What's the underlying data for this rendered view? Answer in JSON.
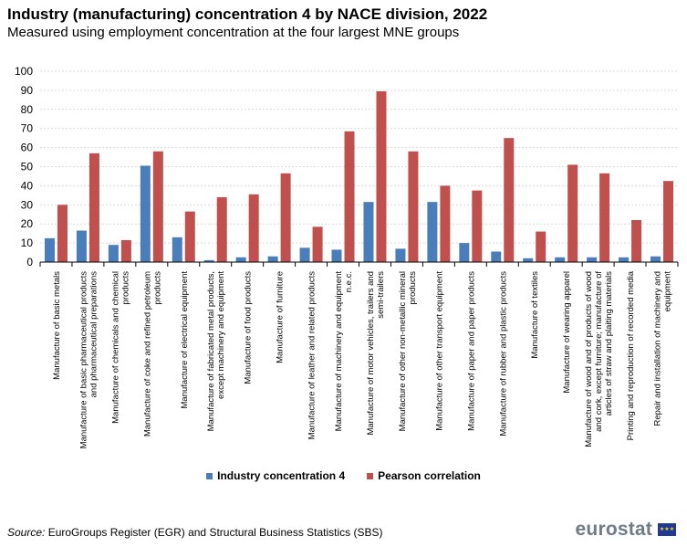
{
  "header": {
    "title": "Industry (manufacturing) concentration 4 by NACE division, 2022",
    "subtitle": "Measured using employment concentration at the four largest MNE groups"
  },
  "footer": {
    "source_label": "Source:",
    "source_text": "EuroGroups Register (EGR) and Structural Business Statistics (SBS)",
    "logo_text": "eurostat"
  },
  "colors": {
    "series1": "#4a7ebb",
    "series2": "#c0504d",
    "grid": "#d9d9d9",
    "axis": "#000000"
  },
  "chart_data": {
    "type": "bar",
    "title": "Industry (manufacturing) concentration 4 by NACE division, 2022",
    "xlabel": "",
    "ylabel": "",
    "ylim": [
      0,
      100
    ],
    "yticks": [
      0,
      10,
      20,
      30,
      40,
      50,
      60,
      70,
      80,
      90,
      100
    ],
    "grid": true,
    "legend_position": "bottom-center",
    "categories": [
      "Manufacture of basic metals",
      "Manufacture of basic pharmaceutical products and pharmaceutical preparations",
      "Manufacture of chemicals and chemical products",
      "Manufacture of coke and refined petroleum products",
      "Manufacture of electrical equipment",
      "Manufacture of fabricated metal products, except machinery and equipment",
      "Manufacture of food products",
      "Manufacture of furniture",
      "Manufacture of leather and related products",
      "Manufacture of machinery and equipment n.e.c.",
      "Manufacture of motor vehicles, trailers and semi-trailers",
      "Manufacture of other non-metallic mineral products",
      "Manufacture of other transport equipment",
      "Manufacture of paper and paper products",
      "Manufacture of rubber and plastic products",
      "Manufacture of textiles",
      "Manufacture of wearing apparel",
      "Manufacture of wood and of products of wood and cork, except furniture; manufacture of articles of straw and plaiting materials",
      "Printing and reproduction of recorded media",
      "Repair and installation of machinery and equipment"
    ],
    "category_lines": [
      [
        "Manufacture of basic metals"
      ],
      [
        "Manufacture of basic pharmaceutical products",
        "and pharmaceutical preparations"
      ],
      [
        "Manufacture of chemicals and chemical",
        "products"
      ],
      [
        "Manufacture of coke and refined petroleum",
        "products"
      ],
      [
        "Manufacture of electrical equipment"
      ],
      [
        "Manufacture of fabricated metal products,",
        "except machinery and equipment"
      ],
      [
        "Manufacture of food products"
      ],
      [
        "Manufacture of furniture"
      ],
      [
        "Manufacture of leather and related products"
      ],
      [
        "Manufacture of machinery and equipment",
        "n.e.c."
      ],
      [
        "Manufacture of motor vehicles, trailers and",
        "semi-trailers"
      ],
      [
        "Manufacture of other non-metallic mineral",
        "products"
      ],
      [
        "Manufacture of other transport equipment"
      ],
      [
        "Manufacture of paper and paper products"
      ],
      [
        "Manufacture of rubber and plastic products"
      ],
      [
        "Manufacture of textiles"
      ],
      [
        "Manufacture of wearing apparel"
      ],
      [
        "Manufacture of wood and of products of wood",
        "and cork, except furniture; manufacture of",
        "articles of straw and plaiting materials"
      ],
      [
        "Printing and reproduction of recorded media"
      ],
      [
        "Repair and installation of machinery and",
        "equipment"
      ]
    ],
    "series": [
      {
        "name": "Industry concentration 4",
        "values": [
          12.5,
          16.5,
          9,
          50.5,
          13,
          1,
          2.5,
          3,
          7.5,
          6.5,
          31.5,
          7,
          31.5,
          10,
          5.5,
          2,
          2.5,
          2.5,
          2.5,
          3
        ]
      },
      {
        "name": "Pearson correlation",
        "values": [
          30,
          57,
          11.5,
          58,
          26.5,
          34,
          35.5,
          46.5,
          18.5,
          68.5,
          89.5,
          58,
          40,
          37.5,
          65,
          16,
          51,
          46.5,
          22,
          42.5
        ]
      }
    ]
  }
}
